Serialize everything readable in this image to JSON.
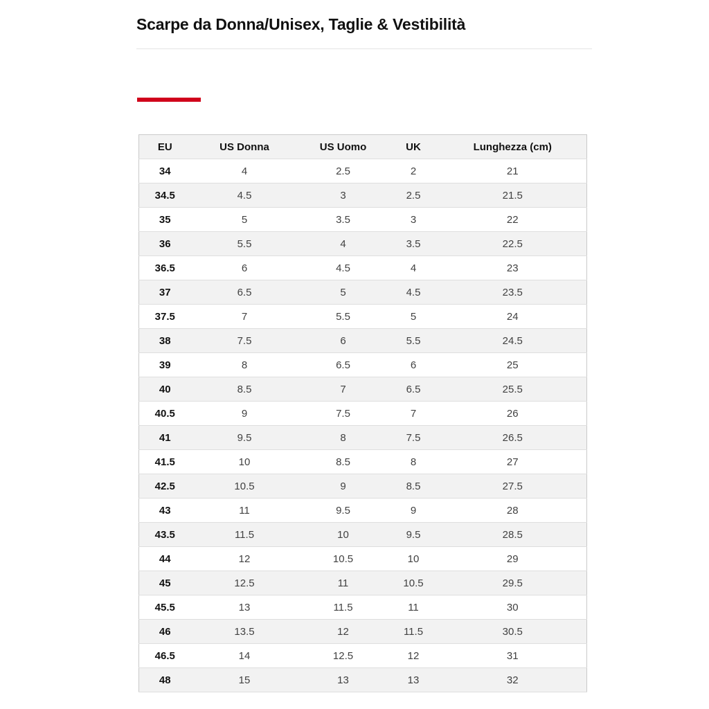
{
  "page": {
    "title": "Scarpe da Donna/Unisex, Taglie & Vestibilità",
    "accent_color": "#d0021b"
  },
  "table": {
    "headers": [
      "EU",
      "US Donna",
      "US Uomo",
      "UK",
      "Lunghezza (cm)"
    ],
    "rows": [
      [
        "34",
        "4",
        "2.5",
        "2",
        "21"
      ],
      [
        "34.5",
        "4.5",
        "3",
        "2.5",
        "21.5"
      ],
      [
        "35",
        "5",
        "3.5",
        "3",
        "22"
      ],
      [
        "36",
        "5.5",
        "4",
        "3.5",
        "22.5"
      ],
      [
        "36.5",
        "6",
        "4.5",
        "4",
        "23"
      ],
      [
        "37",
        "6.5",
        "5",
        "4.5",
        "23.5"
      ],
      [
        "37.5",
        "7",
        "5.5",
        "5",
        "24"
      ],
      [
        "38",
        "7.5",
        "6",
        "5.5",
        "24.5"
      ],
      [
        "39",
        "8",
        "6.5",
        "6",
        "25"
      ],
      [
        "40",
        "8.5",
        "7",
        "6.5",
        "25.5"
      ],
      [
        "40.5",
        "9",
        "7.5",
        "7",
        "26"
      ],
      [
        "41",
        "9.5",
        "8",
        "7.5",
        "26.5"
      ],
      [
        "41.5",
        "10",
        "8.5",
        "8",
        "27"
      ],
      [
        "42.5",
        "10.5",
        "9",
        "8.5",
        "27.5"
      ],
      [
        "43",
        "11",
        "9.5",
        "9",
        "28"
      ],
      [
        "43.5",
        "11.5",
        "10",
        "9.5",
        "28.5"
      ],
      [
        "44",
        "12",
        "10.5",
        "10",
        "29"
      ],
      [
        "45",
        "12.5",
        "11",
        "10.5",
        "29.5"
      ],
      [
        "45.5",
        "13",
        "11.5",
        "11",
        "30"
      ],
      [
        "46",
        "13.5",
        "12",
        "11.5",
        "30.5"
      ],
      [
        "46.5",
        "14",
        "12.5",
        "12",
        "31"
      ],
      [
        "48",
        "15",
        "13",
        "13",
        "32"
      ]
    ]
  }
}
